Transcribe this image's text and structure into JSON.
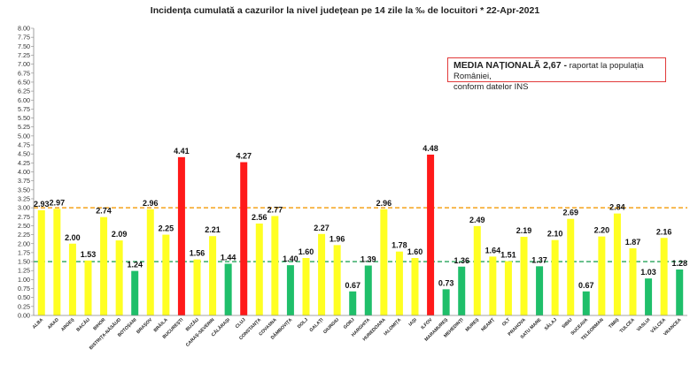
{
  "chart_data": {
    "type": "bar",
    "title": "Incidența cumulată a cazurilor la nivel județean pe 14 zile   la ‰ de locuitori  *  22-Apr-2021",
    "ylim": [
      0,
      8
    ],
    "y_ticks": [
      "0.00",
      "0.25",
      "0.50",
      "0.75",
      "1.00",
      "1.25",
      "1.50",
      "1.75",
      "2.00",
      "2.25",
      "2.50",
      "2.75",
      "3.00",
      "3.25",
      "3.50",
      "3.75",
      "4.00",
      "4.25",
      "4.50",
      "4.75",
      "5.00",
      "5.25",
      "5.50",
      "5.75",
      "6.00",
      "6.25",
      "6.50",
      "6.75",
      "7.00",
      "7.25",
      "7.50",
      "7.75",
      "8.00"
    ],
    "grid": false,
    "categories": [
      "ALBA",
      "ARAD",
      "ARGEȘ",
      "BACĂU",
      "BIHOR",
      "BISTRIȚA-NĂSĂUD",
      "BOTOȘANI",
      "BRAȘOV",
      "BRĂILA",
      "BUCUREȘTI",
      "BUZĂU",
      "CARAȘ-SEVERIN",
      "CĂLĂRAȘI",
      "CLUJ",
      "CONSTANȚA",
      "COVASNA",
      "DÂMBOVIȚA",
      "DOLJ",
      "GALAȚI",
      "GIURGIU",
      "GORJ",
      "HARGHITA",
      "HUNEDOARA",
      "IALOMIȚA",
      "IAȘI",
      "ILFOV",
      "MARAMUREȘ",
      "MEHEDINȚI",
      "MUREȘ",
      "NEAMȚ",
      "OLT",
      "PRAHOVA",
      "SATU MARE",
      "SĂLAJ",
      "SIBIU",
      "SUCEAVA",
      "TELEORMAN",
      "TIMIȘ",
      "TULCEA",
      "VASLUI",
      "VÂLCEA",
      "VRANCEA"
    ],
    "values": [
      2.93,
      2.97,
      2.0,
      1.53,
      2.74,
      2.09,
      1.24,
      2.96,
      2.25,
      4.41,
      1.56,
      2.21,
      1.44,
      4.27,
      2.56,
      2.77,
      1.4,
      1.6,
      2.27,
      1.96,
      0.67,
      1.39,
      2.96,
      1.78,
      1.6,
      4.48,
      0.73,
      1.36,
      2.49,
      1.64,
      1.51,
      2.19,
      1.37,
      2.1,
      2.69,
      0.67,
      2.2,
      2.84,
      1.87,
      1.03,
      2.16,
      1.28
    ],
    "value_labels": [
      "2.93",
      "2.97",
      "2.00",
      "1.53",
      "2.74",
      "2.09",
      "1.24",
      "2.96",
      "2.25",
      "4.41",
      "1.56",
      "2.21",
      "1.44",
      "4.27",
      "2.56",
      "2.77",
      "1.40",
      "1.60",
      "2.27",
      "1.96",
      "0.67",
      "1.39",
      "2.96",
      "1.78",
      "1.60",
      "4.48",
      "0.73",
      "1.36",
      "2.49",
      "1.64",
      "1.51",
      "2.19",
      "1.37",
      "2.10",
      "2.69",
      "0.67",
      "2.20",
      "2.84",
      "1.87",
      "1.03",
      "2.16",
      "1.28"
    ],
    "thresholds": [
      {
        "value": 3.0,
        "color": "#f5a31a"
      },
      {
        "value": 1.5,
        "color": "#27a35a"
      }
    ],
    "colors": {
      "high": "#ff1a1a",
      "mid": "#ffff22",
      "low": "#1fbf6a"
    }
  },
  "legend": {
    "strong": "MEDIA NAȚIONALĂ 2,67 -",
    "rest_line1": " raportat la populația României,",
    "line2": "conform datelor INS"
  }
}
